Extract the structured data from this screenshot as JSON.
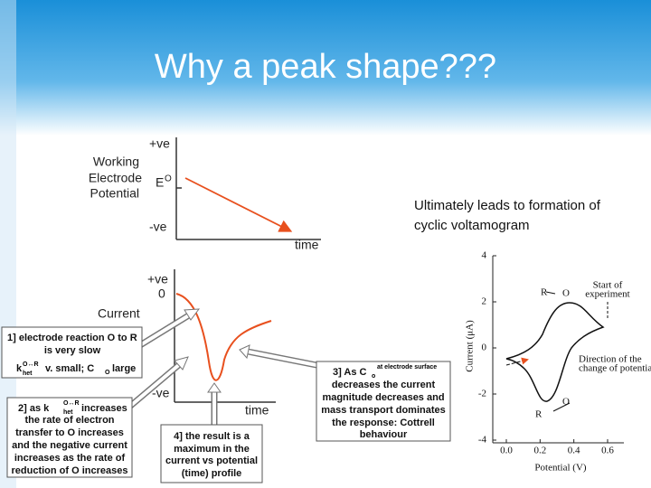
{
  "header": {
    "title": "Why a peak shape???"
  },
  "potential_diagram": {
    "y_top": "+ve",
    "e_symbol": "E",
    "e_sup": "O",
    "y_bottom": "-ve",
    "y_label": [
      "Working",
      "Electrode",
      "Potential"
    ],
    "x_label": "time"
  },
  "current_diagram": {
    "y_top": "+ve",
    "zero": "0",
    "y_label": "Current",
    "y_bottom": "-ve",
    "x_label": "time"
  },
  "boxes": [
    {
      "lines": [
        "1] electrode reaction O to R",
        "is very slow"
      ],
      "k": "k",
      "k_sup": "O↔R",
      "k_sub": "het",
      "rest": "v. small; C",
      "c_sub": "O",
      "rest2": "large"
    },
    {
      "prefix": "2] as k",
      "k_sup": "O↔R",
      "k_sub": "het",
      "suffix": "increases",
      "lines": [
        "the rate of electron",
        "transfer to O increases",
        "and the negative current",
        "increases as the rate of",
        "reduction of O increases"
      ]
    },
    {
      "prefix": "3] As C",
      "c_sub": "o",
      "c_sup": "at electrode surface",
      "lines": [
        "decreases the current",
        "magnitude decreases and",
        "mass transport dominates",
        "the response: Cottrell",
        "behaviour"
      ]
    },
    {
      "lines": [
        "4] the result is a",
        "maximum in the",
        "current vs potential",
        "(time) profile"
      ]
    }
  ],
  "side_text": [
    "Ultimately leads to formation of",
    "cyclic voltamogram"
  ],
  "cv_figure": {
    "yticks": [
      "4",
      "2",
      "0",
      "-2",
      "-4"
    ],
    "xticks": [
      "0.0",
      "0.2",
      "0.4",
      "0.6"
    ],
    "y_label": "Current (μA)",
    "x_label": "Potential (V)",
    "start_note": [
      "Start of",
      "experiment"
    ],
    "direction_note": [
      "Direction of the",
      "change of potential"
    ],
    "upper_r": "R",
    "upper_o": "O",
    "lower_o": "O",
    "lower_r": "R"
  }
}
